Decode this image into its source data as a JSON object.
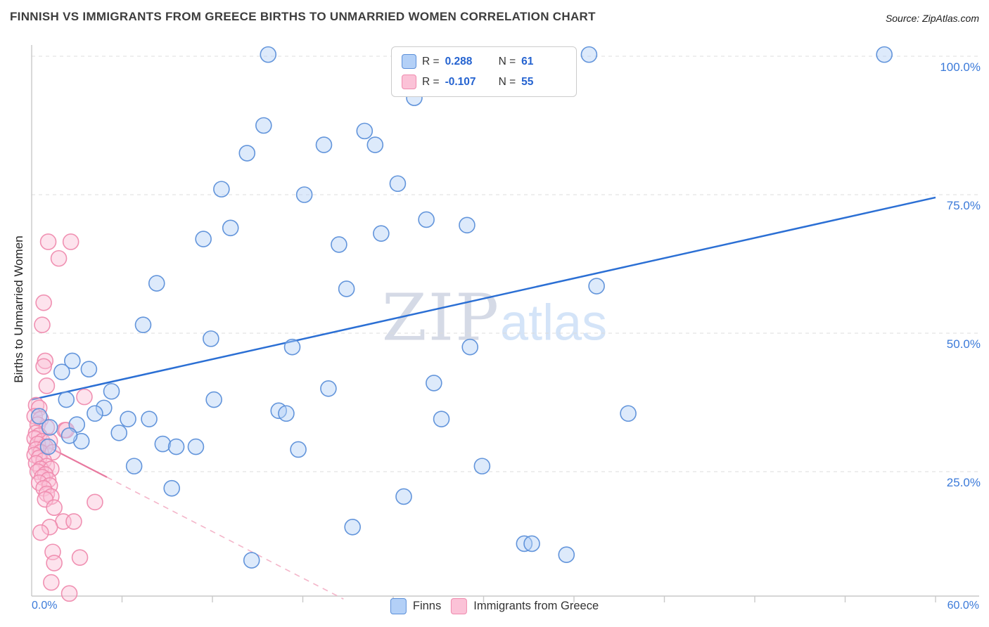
{
  "title": "FINNISH VS IMMIGRANTS FROM GREECE BIRTHS TO UNMARRIED WOMEN CORRELATION CHART",
  "source": "Source: ZipAtlas.com",
  "watermark": {
    "part1": "ZIP",
    "part2": "atlas"
  },
  "legend_box": {
    "series": [
      {
        "r_label": "R =",
        "r_value": "0.288",
        "n_label": "N =",
        "n_value": "61"
      },
      {
        "r_label": "R =",
        "r_value": "-0.107",
        "n_label": "N =",
        "n_value": "55"
      }
    ]
  },
  "axes": {
    "y_label": "Births to Unmarried Women",
    "y_ticks": [
      "100.0%",
      "75.0%",
      "50.0%",
      "25.0%"
    ],
    "x_min_label": "0.0%",
    "x_max_label": "60.0%"
  },
  "bottom_legend": [
    {
      "label": "Finns"
    },
    {
      "label": "Immigrants from Greece"
    }
  ],
  "chart_data": {
    "type": "scatter",
    "title": "Finnish vs Immigrants from Greece Births to Unmarried Women",
    "xlabel": "",
    "ylabel": "Births to Unmarried Women",
    "x_range": [
      0,
      60
    ],
    "y_range": [
      0,
      105
    ],
    "y_gridlines": [
      25,
      50,
      75,
      100
    ],
    "x_tick_step": 6,
    "grid_color": "#dcdcdc",
    "axis_color": "#c9c9c9",
    "series": [
      {
        "name": "Finns",
        "r": 0.288,
        "n": 61,
        "fill": "#b3d0f7",
        "stroke": "#5b8fd9",
        "points": [
          [
            15.7,
            100.3
          ],
          [
            37.0,
            100.3
          ],
          [
            56.6,
            100.3
          ],
          [
            25.4,
            92.5
          ],
          [
            15.4,
            87.5
          ],
          [
            22.1,
            86.5
          ],
          [
            19.4,
            84.0
          ],
          [
            22.8,
            84.0
          ],
          [
            14.3,
            82.5
          ],
          [
            24.3,
            77.0
          ],
          [
            12.6,
            76.0
          ],
          [
            18.1,
            75.0
          ],
          [
            26.2,
            70.5
          ],
          [
            28.9,
            69.5
          ],
          [
            13.2,
            69.0
          ],
          [
            11.4,
            67.0
          ],
          [
            23.2,
            68.0
          ],
          [
            20.4,
            66.0
          ],
          [
            8.3,
            59.0
          ],
          [
            20.9,
            58.0
          ],
          [
            37.5,
            58.5
          ],
          [
            7.4,
            51.5
          ],
          [
            11.9,
            49.0
          ],
          [
            17.3,
            47.5
          ],
          [
            29.1,
            47.5
          ],
          [
            26.7,
            41.0
          ],
          [
            2.7,
            45.0
          ],
          [
            3.8,
            43.5
          ],
          [
            2.3,
            38.0
          ],
          [
            5.3,
            39.5
          ],
          [
            4.8,
            36.5
          ],
          [
            12.1,
            38.0
          ],
          [
            16.4,
            36.0
          ],
          [
            16.9,
            35.5
          ],
          [
            19.7,
            40.0
          ],
          [
            27.2,
            34.5
          ],
          [
            39.6,
            35.5
          ],
          [
            6.4,
            34.5
          ],
          [
            7.8,
            34.5
          ],
          [
            1.2,
            33.0
          ],
          [
            3.3,
            30.5
          ],
          [
            5.8,
            32.0
          ],
          [
            8.7,
            30.0
          ],
          [
            9.6,
            29.5
          ],
          [
            10.9,
            29.5
          ],
          [
            17.7,
            29.0
          ],
          [
            6.8,
            26.0
          ],
          [
            29.9,
            26.0
          ],
          [
            9.3,
            22.0
          ],
          [
            24.7,
            20.5
          ],
          [
            21.3,
            15.0
          ],
          [
            32.7,
            12.0
          ],
          [
            33.2,
            12.0
          ],
          [
            35.5,
            10.0
          ],
          [
            14.6,
            9.0
          ],
          [
            0.5,
            35.0
          ],
          [
            1.1,
            29.5
          ],
          [
            2.0,
            43.0
          ],
          [
            4.2,
            35.5
          ],
          [
            3.0,
            33.5
          ],
          [
            2.5,
            31.5
          ]
        ]
      },
      {
        "name": "Immigrants from Greece",
        "r": -0.107,
        "n": 55,
        "fill": "#fbc2d7",
        "stroke": "#ef8bae",
        "points": [
          [
            1.1,
            66.5
          ],
          [
            2.6,
            66.5
          ],
          [
            1.8,
            63.5
          ],
          [
            0.8,
            55.5
          ],
          [
            0.7,
            51.5
          ],
          [
            0.9,
            45.0
          ],
          [
            1.0,
            40.5
          ],
          [
            3.5,
            38.5
          ],
          [
            0.3,
            37.0
          ],
          [
            0.5,
            36.5
          ],
          [
            0.2,
            35.0
          ],
          [
            0.6,
            34.5
          ],
          [
            0.4,
            33.5
          ],
          [
            1.0,
            33.0
          ],
          [
            2.2,
            32.5
          ],
          [
            2.3,
            32.5
          ],
          [
            0.3,
            32.0
          ],
          [
            0.5,
            31.5
          ],
          [
            0.2,
            31.0
          ],
          [
            0.7,
            30.5
          ],
          [
            1.2,
            30.5
          ],
          [
            0.4,
            30.0
          ],
          [
            0.9,
            29.5
          ],
          [
            0.3,
            29.0
          ],
          [
            0.6,
            28.5
          ],
          [
            1.4,
            28.5
          ],
          [
            0.2,
            28.0
          ],
          [
            0.5,
            27.5
          ],
          [
            0.8,
            27.0
          ],
          [
            0.3,
            26.5
          ],
          [
            1.0,
            26.0
          ],
          [
            0.6,
            25.5
          ],
          [
            1.3,
            25.5
          ],
          [
            0.4,
            25.0
          ],
          [
            0.9,
            24.5
          ],
          [
            0.7,
            24.0
          ],
          [
            1.1,
            23.5
          ],
          [
            0.5,
            23.0
          ],
          [
            1.2,
            22.5
          ],
          [
            0.8,
            22.0
          ],
          [
            1.0,
            21.0
          ],
          [
            1.3,
            20.5
          ],
          [
            0.9,
            20.0
          ],
          [
            1.5,
            18.5
          ],
          [
            4.2,
            19.5
          ],
          [
            2.1,
            16.0
          ],
          [
            2.8,
            16.0
          ],
          [
            1.2,
            15.0
          ],
          [
            0.6,
            14.0
          ],
          [
            3.2,
            9.5
          ],
          [
            1.4,
            10.5
          ],
          [
            1.5,
            8.5
          ],
          [
            1.3,
            5.0
          ],
          [
            2.5,
            3.0
          ],
          [
            0.8,
            44.0
          ]
        ]
      }
    ],
    "trend_lines": [
      {
        "series": "Finns",
        "x0": 0,
        "y0": 38,
        "x1": 60,
        "y1": 74.5,
        "style": "solid",
        "color": "#2b6fd4",
        "width": 2.5
      },
      {
        "series": "Immigrants from Greece",
        "x0": 0,
        "y0": 31,
        "x1": 5,
        "y1": 24,
        "style": "solid",
        "color": "#e8799f",
        "width": 2.2
      },
      {
        "series": "Immigrants from Greece",
        "x0": 5,
        "y0": 24,
        "x1": 20.7,
        "y1": 2,
        "style": "dashed",
        "color": "#f4b6ca",
        "width": 1.6
      }
    ],
    "legend_position": "bottom-center",
    "grid": true
  }
}
